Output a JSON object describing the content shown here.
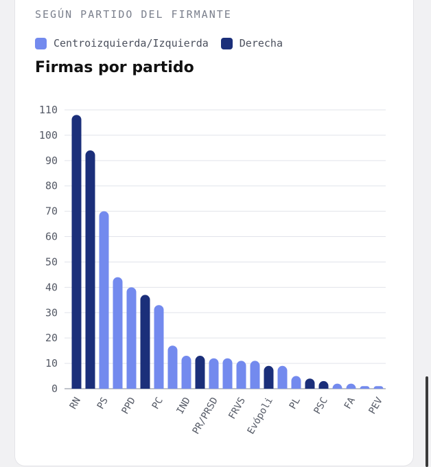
{
  "header": {
    "subtitle": "SEGÚN PARTIDO DEL FIRMANTE",
    "title": "Firmas por partido"
  },
  "legend": [
    {
      "label": "Centroizquierda/Izquierda",
      "color": "#738aee"
    },
    {
      "label": "Derecha",
      "color": "#1b2f7a"
    }
  ],
  "chart_data": {
    "type": "bar",
    "title": "Firmas por partido",
    "xlabel": "",
    "ylabel": "",
    "ylim": [
      0,
      110
    ],
    "yticks": [
      0,
      10,
      20,
      30,
      40,
      50,
      60,
      70,
      80,
      90,
      100,
      110
    ],
    "grid": true,
    "legend_position": "top-left",
    "categories": [
      "RN",
      "",
      "PS",
      "",
      "PPD",
      "",
      "PC",
      "",
      "IND",
      "",
      "PR/PRSD",
      "",
      "FRVS",
      "",
      "Evópoli",
      "",
      "PL",
      "",
      "PSC",
      "",
      "FA",
      "",
      "PEV"
    ],
    "values": [
      108,
      94,
      70,
      44,
      40,
      37,
      33,
      17,
      13,
      13,
      12,
      12,
      11,
      11,
      9,
      9,
      5,
      4,
      3,
      2,
      2,
      1,
      1
    ],
    "groups": [
      "Derecha",
      "Derecha",
      "Centroizquierda/Izquierda",
      "Centroizquierda/Izquierda",
      "Centroizquierda/Izquierda",
      "Derecha",
      "Centroizquierda/Izquierda",
      "Centroizquierda/Izquierda",
      "Centroizquierda/Izquierda",
      "Derecha",
      "Centroizquierda/Izquierda",
      "Centroizquierda/Izquierda",
      "Centroizquierda/Izquierda",
      "Centroizquierda/Izquierda",
      "Derecha",
      "Centroizquierda/Izquierda",
      "Centroizquierda/Izquierda",
      "Derecha",
      "Derecha",
      "Centroizquierda/Izquierda",
      "Centroizquierda/Izquierda",
      "Centroizquierda/Izquierda",
      "Centroizquierda/Izquierda"
    ],
    "colors": {
      "Centroizquierda/Izquierda": "#738aee",
      "Derecha": "#1b2f7a"
    }
  }
}
